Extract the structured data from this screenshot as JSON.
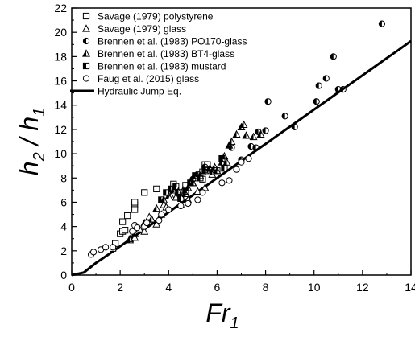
{
  "chart_data": {
    "type": "scatter",
    "xlabel": "Fr",
    "xlabel_sub": "1",
    "ylabel_h2": "h",
    "ylabel_h2_sub": "2",
    "ylabel_slash": " / ",
    "ylabel_h1": "h",
    "ylabel_h1_sub": "1",
    "xlim": [
      0,
      14
    ],
    "ylim": [
      0,
      22
    ],
    "x_ticks": [
      0,
      2,
      4,
      6,
      8,
      10,
      12,
      14
    ],
    "y_ticks": [
      0,
      2,
      4,
      6,
      8,
      10,
      12,
      14,
      16,
      18,
      20,
      22
    ],
    "x_tick_labels": [
      "0",
      "2",
      "4",
      "6",
      "8",
      "10",
      "12",
      "14"
    ],
    "y_tick_labels": [
      "0",
      "2",
      "4",
      "6",
      "8",
      "10",
      "12",
      "14",
      "16",
      "18",
      "20",
      "22"
    ],
    "grid": false,
    "legend_position": "top-left",
    "series": [
      {
        "name": "Savage (1979) polystyrene",
        "marker": "square-open",
        "points": [
          [
            1.7,
            2.2
          ],
          [
            1.8,
            2.6
          ],
          [
            2.0,
            3.4
          ],
          [
            2.1,
            3.6
          ],
          [
            2.1,
            4.4
          ],
          [
            2.2,
            3.7
          ],
          [
            2.3,
            4.9
          ],
          [
            2.6,
            5.8
          ],
          [
            2.6,
            5.4
          ],
          [
            2.6,
            6.0
          ],
          [
            3.0,
            6.8
          ],
          [
            3.5,
            7.1
          ],
          [
            4.2,
            7.5
          ],
          [
            4.7,
            7.4
          ],
          [
            5.1,
            8.0
          ],
          [
            5.4,
            7.9
          ],
          [
            5.4,
            8.5
          ],
          [
            5.5,
            9.1
          ],
          [
            5.6,
            9.1
          ],
          [
            5.8,
            8.6
          ],
          [
            6.0,
            8.6
          ]
        ]
      },
      {
        "name": "Savage (1979) glass",
        "marker": "triangle-open",
        "points": [
          [
            2.4,
            3.0
          ],
          [
            2.6,
            3.1
          ],
          [
            2.8,
            3.8
          ],
          [
            3.0,
            3.6
          ],
          [
            3.2,
            4.8
          ],
          [
            3.3,
            4.6
          ],
          [
            3.5,
            4.2
          ],
          [
            3.7,
            5.0
          ],
          [
            3.8,
            5.8
          ],
          [
            3.9,
            5.6
          ],
          [
            4.1,
            6.5
          ],
          [
            4.3,
            6.4
          ],
          [
            4.5,
            5.8
          ],
          [
            4.6,
            7.0
          ],
          [
            4.8,
            6.2
          ],
          [
            5.0,
            7.6
          ],
          [
            5.2,
            6.9
          ],
          [
            5.5,
            7.2
          ],
          [
            5.8,
            8.3
          ]
        ]
      },
      {
        "name": "Brennen et al. (1983) PO170-glass",
        "marker": "circle-half",
        "points": [
          [
            5.0,
            7.9
          ],
          [
            5.2,
            8.3
          ],
          [
            5.5,
            8.9
          ],
          [
            5.8,
            8.5
          ],
          [
            6.6,
            10.5
          ],
          [
            7.0,
            9.5
          ],
          [
            7.4,
            10.6
          ],
          [
            7.6,
            10.5
          ],
          [
            7.7,
            11.8
          ],
          [
            8.0,
            11.9
          ],
          [
            8.1,
            14.3
          ],
          [
            8.8,
            13.1
          ],
          [
            9.2,
            12.2
          ],
          [
            10.1,
            14.3
          ],
          [
            10.2,
            15.6
          ],
          [
            10.5,
            16.2
          ],
          [
            11.0,
            15.3
          ],
          [
            10.8,
            18.0
          ],
          [
            11.2,
            15.3
          ],
          [
            12.8,
            20.7
          ]
        ]
      },
      {
        "name": "Brennen et al. (1983) BT4-glass",
        "marker": "triangle-half",
        "points": [
          [
            2.4,
            2.9
          ],
          [
            2.6,
            3.4
          ],
          [
            3.0,
            4.3
          ],
          [
            3.3,
            4.6
          ],
          [
            3.5,
            5.5
          ],
          [
            3.8,
            6.2
          ],
          [
            4.0,
            6.5
          ],
          [
            4.2,
            7.0
          ],
          [
            4.4,
            6.9
          ],
          [
            4.5,
            6.5
          ],
          [
            4.7,
            6.7
          ],
          [
            4.8,
            7.2
          ],
          [
            5.0,
            7.6
          ],
          [
            5.3,
            8.2
          ],
          [
            5.5,
            8.6
          ],
          [
            5.7,
            8.8
          ],
          [
            5.9,
            8.9
          ],
          [
            6.0,
            8.6
          ],
          [
            6.2,
            9.3
          ],
          [
            6.3,
            9.8
          ],
          [
            6.4,
            9.3
          ],
          [
            6.5,
            10.7
          ],
          [
            6.6,
            11.0
          ],
          [
            6.8,
            11.6
          ],
          [
            7.0,
            12.2
          ],
          [
            7.1,
            12.4
          ],
          [
            7.2,
            11.5
          ],
          [
            7.5,
            11.4
          ],
          [
            7.8,
            11.6
          ]
        ]
      },
      {
        "name": "Brennen et al. (1983) mustard",
        "marker": "square-half",
        "points": [
          [
            3.7,
            6.2
          ],
          [
            3.9,
            6.8
          ],
          [
            4.1,
            7.1
          ],
          [
            4.3,
            7.3
          ],
          [
            4.4,
            6.8
          ],
          [
            4.5,
            6.3
          ],
          [
            4.7,
            6.9
          ],
          [
            4.9,
            7.6
          ],
          [
            5.1,
            8.2
          ],
          [
            5.3,
            8.0
          ],
          [
            5.5,
            8.7
          ],
          [
            6.2,
            9.6
          ],
          [
            6.3,
            8.8
          ]
        ]
      },
      {
        "name": "Faug et al. (2015) glass",
        "marker": "circle-open",
        "points": [
          [
            0.8,
            1.7
          ],
          [
            0.9,
            1.9
          ],
          [
            1.2,
            2.1
          ],
          [
            1.4,
            2.3
          ],
          [
            1.7,
            2.3
          ],
          [
            2.5,
            3.6
          ],
          [
            2.6,
            4.1
          ],
          [
            2.7,
            3.9
          ],
          [
            3.0,
            4.0
          ],
          [
            3.1,
            4.3
          ],
          [
            3.6,
            4.5
          ],
          [
            3.7,
            5.0
          ],
          [
            4.0,
            5.4
          ],
          [
            4.5,
            5.7
          ],
          [
            4.8,
            5.9
          ],
          [
            5.2,
            6.2
          ],
          [
            5.4,
            6.8
          ],
          [
            6.2,
            7.6
          ],
          [
            6.5,
            7.8
          ],
          [
            6.8,
            8.7
          ],
          [
            7.0,
            9.3
          ],
          [
            7.3,
            9.6
          ]
        ]
      }
    ],
    "line_series": [
      {
        "name": "Hydraulic Jump Eq.",
        "x": [
          0,
          0.5,
          1,
          1.5,
          2,
          2.5,
          3,
          3.5,
          4,
          4.5,
          5,
          5.5,
          6,
          6.5,
          7,
          7.5,
          8,
          8.5,
          9,
          9.5,
          10,
          10.5,
          11,
          11.5,
          12,
          12.5,
          13,
          13.5,
          14
        ],
        "y": [
          0,
          0.21,
          1.0,
          1.67,
          2.37,
          3.07,
          3.77,
          4.47,
          5.18,
          5.89,
          6.59,
          7.29,
          8.0,
          8.7,
          9.4,
          10.11,
          10.81,
          11.52,
          12.22,
          12.93,
          13.64,
          14.34,
          15.05,
          15.75,
          16.46,
          17.16,
          17.87,
          18.57,
          19.28
        ]
      }
    ]
  }
}
